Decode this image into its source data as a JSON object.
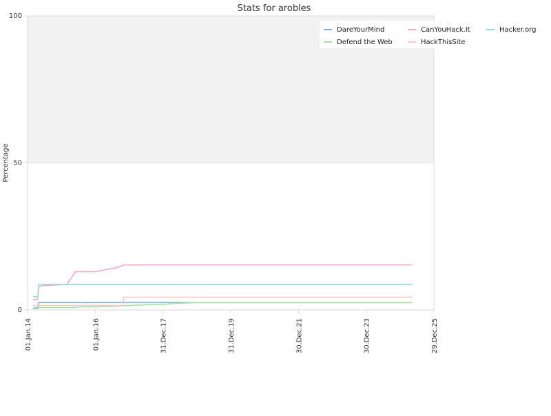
{
  "chart_data": {
    "type": "line",
    "title": "Stats for arobles",
    "xlabel": "",
    "ylabel": "Percentage",
    "ylim": [
      0,
      100
    ],
    "xlim": [
      "2014-01-01",
      "2025-12-29"
    ],
    "y_ticks": [
      0,
      50,
      100
    ],
    "x_ticks": [
      {
        "label": "01.Jan.14",
        "date": "2014-01-01"
      },
      {
        "label": "01.Jan.16",
        "date": "2016-01-01"
      },
      {
        "label": "31.Dec.17",
        "date": "2017-12-31"
      },
      {
        "label": "31.Dec.19",
        "date": "2019-12-31"
      },
      {
        "label": "30.Dec.21",
        "date": "2021-12-30"
      },
      {
        "label": "30.Dec.23",
        "date": "2023-12-30"
      },
      {
        "label": "29.Dec.25",
        "date": "2025-12-29"
      }
    ],
    "shaded_band": {
      "from": 50,
      "to": 100,
      "color": "#f2f2f2"
    },
    "grid": true,
    "legend_position": "top-right",
    "series": [
      {
        "name": "DareYourMind",
        "color": "#7fb3d8",
        "points": [
          [
            "2014-03-01",
            0.5
          ],
          [
            "2014-04-20",
            0.5
          ],
          [
            "2014-05-01",
            2.5
          ],
          [
            "2016-01-01",
            2.5
          ],
          [
            "2017-01-01",
            2.5
          ],
          [
            "2019-01-01",
            2.5
          ],
          [
            "2025-05-10",
            2.5
          ]
        ]
      },
      {
        "name": "Defend the Web",
        "color": "#a6e3a1",
        "points": [
          [
            "2014-03-01",
            0.8
          ],
          [
            "2014-05-01",
            0.8
          ],
          [
            "2015-06-01",
            0.8
          ],
          [
            "2015-07-01",
            1.0
          ],
          [
            "2016-01-01",
            1.0
          ],
          [
            "2016-06-01",
            1.2
          ],
          [
            "2017-01-01",
            1.5
          ],
          [
            "2017-06-01",
            1.7
          ],
          [
            "2018-01-01",
            1.9
          ],
          [
            "2018-06-01",
            2.2
          ],
          [
            "2019-01-01",
            2.5
          ],
          [
            "2019-06-01",
            2.5
          ],
          [
            "2025-05-10",
            2.5
          ]
        ]
      },
      {
        "name": "CanYouHack.It",
        "color": "#f4a6c8",
        "points": [
          [
            "2014-03-01",
            3.5
          ],
          [
            "2014-04-20",
            3.5
          ],
          [
            "2014-05-01",
            7.8
          ],
          [
            "2014-06-01",
            8.2
          ],
          [
            "2015-03-01",
            8.7
          ],
          [
            "2015-06-01",
            13.0
          ],
          [
            "2016-01-01",
            13.0
          ],
          [
            "2016-09-01",
            14.5
          ],
          [
            "2016-11-01",
            15.3
          ],
          [
            "2025-05-10",
            15.3
          ]
        ]
      },
      {
        "name": "HackThisSite",
        "color": "#ffc8c8",
        "points": [
          [
            "2014-03-01",
            1.5
          ],
          [
            "2016-01-01",
            1.5
          ],
          [
            "2016-10-28",
            1.5
          ],
          [
            "2016-11-01",
            4.3
          ],
          [
            "2025-05-10",
            4.3
          ]
        ]
      },
      {
        "name": "Hacker.org",
        "color": "#8fe0d0",
        "points": [
          [
            "2014-03-01",
            4.5
          ],
          [
            "2014-04-20",
            4.5
          ],
          [
            "2014-05-01",
            8.7
          ],
          [
            "2016-01-01",
            8.7
          ],
          [
            "2025-05-10",
            8.7
          ]
        ]
      }
    ]
  }
}
